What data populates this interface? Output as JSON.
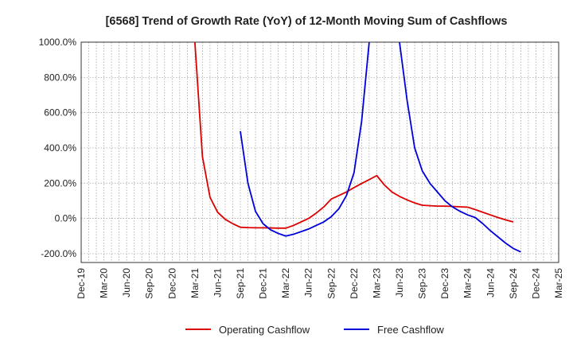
{
  "chart_data": {
    "type": "line",
    "title": "[6568]  Trend of Growth Rate (YoY) of 12-Month Moving Sum of Cashflows",
    "xlabel": "",
    "ylabel": "",
    "ylim": [
      -250,
      1000
    ],
    "yticks": [
      -200,
      0,
      200,
      400,
      600,
      800,
      1000
    ],
    "ytick_labels": [
      "-200.0%",
      "0.0%",
      "200.0%",
      "400.0%",
      "600.0%",
      "800.0%",
      "1000.0%"
    ],
    "x_categories": [
      "Dec-19",
      "Jan-20",
      "Feb-20",
      "Mar-20",
      "Apr-20",
      "May-20",
      "Jun-20",
      "Jul-20",
      "Aug-20",
      "Sep-20",
      "Oct-20",
      "Nov-20",
      "Dec-20",
      "Jan-21",
      "Feb-21",
      "Mar-21",
      "Apr-21",
      "May-21",
      "Jun-21",
      "Jul-21",
      "Aug-21",
      "Sep-21",
      "Oct-21",
      "Nov-21",
      "Dec-21",
      "Jan-22",
      "Feb-22",
      "Mar-22",
      "Apr-22",
      "May-22",
      "Jun-22",
      "Jul-22",
      "Aug-22",
      "Sep-22",
      "Oct-22",
      "Nov-22",
      "Dec-22",
      "Jan-23",
      "Feb-23",
      "Mar-23",
      "Apr-23",
      "May-23",
      "Jun-23",
      "Jul-23",
      "Aug-23",
      "Sep-23",
      "Oct-23",
      "Nov-23",
      "Dec-23",
      "Jan-24",
      "Feb-24",
      "Mar-24",
      "Apr-24",
      "May-24",
      "Jun-24",
      "Jul-24",
      "Aug-24",
      "Sep-24",
      "Oct-24",
      "Nov-24",
      "Dec-24",
      "Jan-25",
      "Feb-25",
      "Mar-25"
    ],
    "xtick_labels": [
      "Dec-19",
      "Mar-20",
      "Jun-20",
      "Sep-20",
      "Dec-20",
      "Mar-21",
      "Jun-21",
      "Sep-21",
      "Dec-21",
      "Mar-22",
      "Jun-22",
      "Sep-22",
      "Dec-22",
      "Mar-23",
      "Jun-23",
      "Sep-23",
      "Dec-23",
      "Mar-24",
      "Jun-24",
      "Sep-24",
      "Dec-24",
      "Mar-25"
    ],
    "grid": true,
    "legend_position": "bottom-center",
    "series": [
      {
        "name": "Operating Cashflow",
        "color": "#dd0000",
        "points": [
          [
            "Mar-21",
            1000
          ],
          [
            "Apr-21",
            350
          ],
          [
            "May-21",
            120
          ],
          [
            "Jun-21",
            35
          ],
          [
            "Jul-21",
            -5
          ],
          [
            "Aug-21",
            -30
          ],
          [
            "Sep-21",
            -50
          ],
          [
            "Oct-21",
            -52
          ],
          [
            "Nov-21",
            -53
          ],
          [
            "Dec-21",
            -53
          ],
          [
            "Jan-22",
            -54
          ],
          [
            "Feb-22",
            -55
          ],
          [
            "Mar-22",
            -55
          ],
          [
            "Apr-22",
            -40
          ],
          [
            "May-22",
            -20
          ],
          [
            "Jun-22",
            0
          ],
          [
            "Jul-22",
            30
          ],
          [
            "Aug-22",
            65
          ],
          [
            "Sep-22",
            110
          ],
          [
            "Oct-22",
            130
          ],
          [
            "Nov-22",
            150
          ],
          [
            "Dec-22",
            175
          ],
          [
            "Jan-23",
            198
          ],
          [
            "Feb-23",
            220
          ],
          [
            "Mar-23",
            243
          ],
          [
            "Apr-23",
            190
          ],
          [
            "May-23",
            150
          ],
          [
            "Jun-23",
            125
          ],
          [
            "Jul-23",
            105
          ],
          [
            "Aug-23",
            88
          ],
          [
            "Sep-23",
            75
          ],
          [
            "Oct-23",
            72
          ],
          [
            "Nov-23",
            70
          ],
          [
            "Dec-23",
            70
          ],
          [
            "Jan-24",
            68
          ],
          [
            "Feb-24",
            66
          ],
          [
            "Mar-24",
            64
          ],
          [
            "Apr-24",
            50
          ],
          [
            "May-24",
            35
          ],
          [
            "Jun-24",
            20
          ],
          [
            "Jul-24",
            5
          ],
          [
            "Aug-24",
            -8
          ],
          [
            "Sep-24",
            -20
          ]
        ]
      },
      {
        "name": "Free Cashflow",
        "color": "#0000dd",
        "points": [
          [
            "Sep-21",
            495
          ],
          [
            "Oct-21",
            200
          ],
          [
            "Nov-21",
            40
          ],
          [
            "Dec-21",
            -30
          ],
          [
            "Jan-22",
            -65
          ],
          [
            "Feb-22",
            -85
          ],
          [
            "Mar-22",
            -100
          ],
          [
            "Apr-22",
            -90
          ],
          [
            "May-22",
            -75
          ],
          [
            "Jun-22",
            -60
          ],
          [
            "Jul-22",
            -40
          ],
          [
            "Aug-22",
            -20
          ],
          [
            "Sep-22",
            10
          ],
          [
            "Oct-22",
            55
          ],
          [
            "Nov-22",
            130
          ],
          [
            "Dec-22",
            260
          ],
          [
            "Jan-23",
            550
          ],
          [
            "Feb-23",
            1000
          ],
          [
            "Jun-23",
            1000
          ],
          [
            "Jul-23",
            670
          ],
          [
            "Aug-23",
            400
          ],
          [
            "Sep-23",
            270
          ],
          [
            "Oct-23",
            200
          ],
          [
            "Nov-23",
            150
          ],
          [
            "Dec-23",
            100
          ],
          [
            "Jan-24",
            65
          ],
          [
            "Feb-24",
            40
          ],
          [
            "Mar-24",
            20
          ],
          [
            "Apr-24",
            5
          ],
          [
            "May-24",
            -30
          ],
          [
            "Jun-24",
            -70
          ],
          [
            "Jul-24",
            -105
          ],
          [
            "Aug-24",
            -140
          ],
          [
            "Sep-24",
            -170
          ],
          [
            "Oct-24",
            -190
          ]
        ]
      }
    ]
  }
}
